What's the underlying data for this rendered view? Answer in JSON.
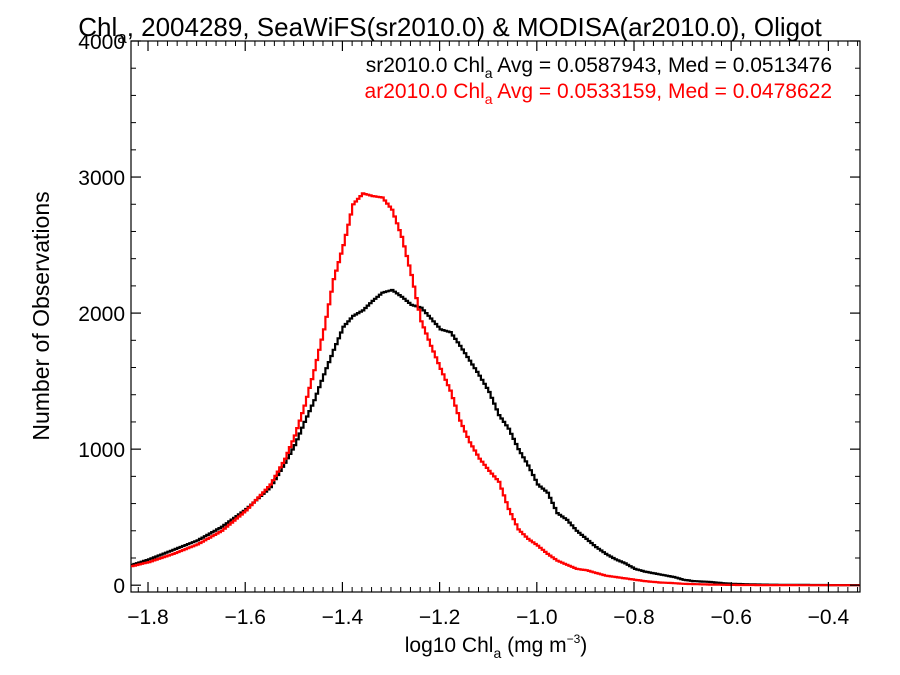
{
  "chart_data": {
    "type": "line",
    "title": {
      "pre": "Chl",
      "sub": "a",
      "post": ", 2004289, SeaWiFS(sr2010.0) & MODISA(ar2010.0), Oligot"
    },
    "xlabel": {
      "pre": "log10 Chl",
      "sub": "a",
      "mid": " (mg m",
      "sup": "−3",
      "post": ")"
    },
    "ylabel": "Number of Observations",
    "xlim": [
      -1.835,
      -0.335
    ],
    "ylim": [
      -50,
      4000
    ],
    "xticks": [
      -1.8,
      -1.6,
      -1.4,
      -1.2,
      -1.0,
      -0.8,
      -0.6,
      -0.4
    ],
    "xtick_labels": [
      "−1.8",
      "−1.6",
      "−1.4",
      "−1.2",
      "−1.0",
      "−0.8",
      "−0.6",
      "−0.4"
    ],
    "yticks": [
      0,
      1000,
      2000,
      3000,
      4000
    ],
    "ytick_labels": [
      "0",
      "1000",
      "2000",
      "3000",
      "4000"
    ],
    "grid": false,
    "legend_position": "top-right",
    "series": [
      {
        "name": "sr2010.0",
        "color": "#000000",
        "annotation": {
          "pre": "sr2010.0 Chl",
          "sub": "a",
          "post": " Avg = 0.0587943, Med = 0.0513476"
        },
        "x": [
          -1.835,
          -1.8,
          -1.75,
          -1.7,
          -1.65,
          -1.6,
          -1.55,
          -1.52,
          -1.5,
          -1.48,
          -1.46,
          -1.44,
          -1.42,
          -1.4,
          -1.38,
          -1.36,
          -1.34,
          -1.32,
          -1.3,
          -1.28,
          -1.26,
          -1.24,
          -1.22,
          -1.2,
          -1.18,
          -1.16,
          -1.14,
          -1.12,
          -1.1,
          -1.08,
          -1.06,
          -1.04,
          -1.02,
          -1.0,
          -0.98,
          -0.96,
          -0.94,
          -0.92,
          -0.9,
          -0.88,
          -0.86,
          -0.84,
          -0.82,
          -0.8,
          -0.78,
          -0.75,
          -0.72,
          -0.7,
          -0.68,
          -0.65,
          -0.62,
          -0.6,
          -0.55,
          -0.5,
          -0.45,
          -0.4,
          -0.335
        ],
        "y": [
          150,
          190,
          260,
          330,
          430,
          560,
          720,
          900,
          1030,
          1200,
          1360,
          1550,
          1730,
          1900,
          1980,
          2020,
          2090,
          2150,
          2170,
          2120,
          2060,
          2040,
          1960,
          1880,
          1860,
          1760,
          1650,
          1540,
          1420,
          1250,
          1150,
          1000,
          880,
          740,
          680,
          530,
          480,
          400,
          340,
          280,
          230,
          190,
          160,
          120,
          100,
          80,
          60,
          40,
          30,
          25,
          15,
          10,
          5,
          3,
          2,
          1,
          0
        ]
      },
      {
        "name": "ar2010.0",
        "color": "#ff0000",
        "annotation": {
          "pre": "ar2010.0 Chl",
          "sub": "a",
          "post": " Avg = 0.0533159, Med = 0.0478622"
        },
        "x": [
          -1.835,
          -1.8,
          -1.75,
          -1.7,
          -1.65,
          -1.6,
          -1.55,
          -1.52,
          -1.5,
          -1.48,
          -1.46,
          -1.44,
          -1.42,
          -1.4,
          -1.38,
          -1.36,
          -1.34,
          -1.32,
          -1.3,
          -1.28,
          -1.26,
          -1.24,
          -1.22,
          -1.2,
          -1.18,
          -1.16,
          -1.14,
          -1.12,
          -1.1,
          -1.08,
          -1.06,
          -1.04,
          -1.02,
          -1.0,
          -0.98,
          -0.96,
          -0.94,
          -0.92,
          -0.9,
          -0.88,
          -0.86,
          -0.84,
          -0.82,
          -0.8,
          -0.78,
          -0.75,
          -0.72,
          -0.7,
          -0.68,
          -0.65,
          -0.62,
          -0.6,
          -0.55,
          -0.5,
          -0.45,
          -0.4,
          -0.335
        ],
        "y": [
          140,
          170,
          230,
          300,
          400,
          550,
          740,
          930,
          1100,
          1320,
          1580,
          1880,
          2250,
          2500,
          2800,
          2880,
          2860,
          2850,
          2760,
          2560,
          2280,
          1940,
          1760,
          1590,
          1430,
          1210,
          1050,
          930,
          840,
          760,
          560,
          410,
          340,
          290,
          230,
          180,
          150,
          120,
          110,
          90,
          70,
          60,
          50,
          40,
          30,
          20,
          15,
          10,
          8,
          5,
          3,
          2,
          1,
          1,
          0,
          0,
          0
        ]
      }
    ]
  }
}
